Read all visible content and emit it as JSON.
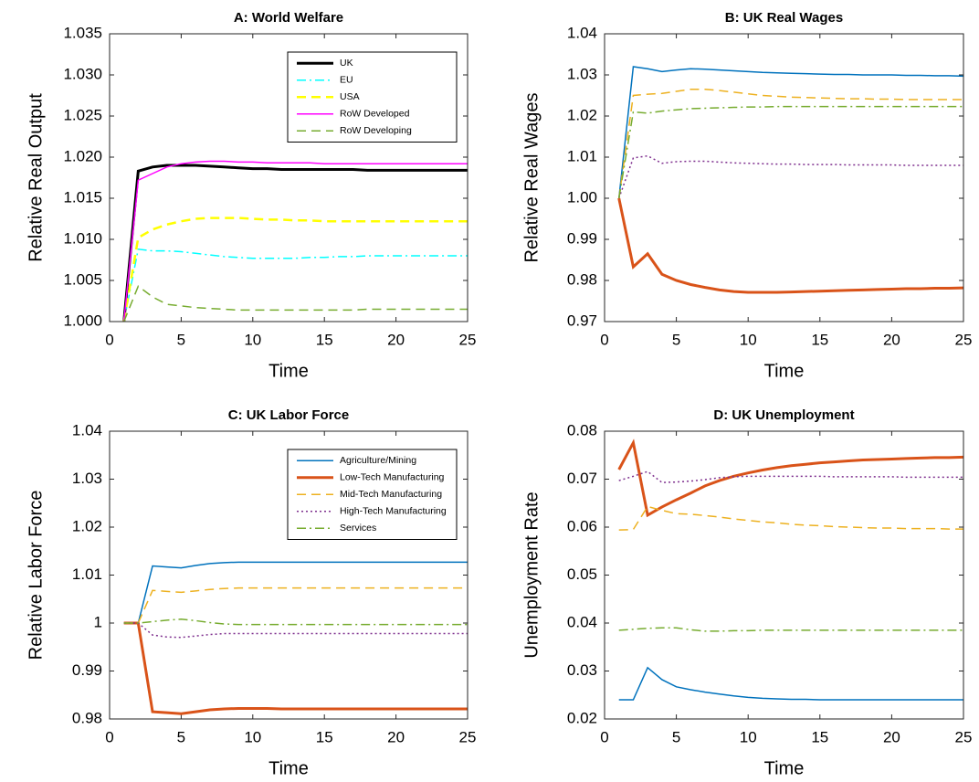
{
  "chart_data": [
    {
      "type": "line",
      "title": "A: World Welfare",
      "xlabel": "Time",
      "ylabel": "Relative Real Output",
      "x": [
        1,
        2,
        3,
        4,
        5,
        6,
        7,
        8,
        9,
        10,
        11,
        12,
        13,
        14,
        15,
        16,
        17,
        18,
        19,
        20,
        21,
        22,
        23,
        24,
        25
      ],
      "xlim": [
        0,
        25
      ],
      "xticks": [
        0,
        5,
        10,
        15,
        20,
        25
      ],
      "ylim": [
        1.0,
        1.035
      ],
      "yticks": [
        {
          "value": 1.0,
          "label": "1.000"
        },
        1.005,
        {
          "value": 1.01,
          "label": "1.010"
        },
        1.015,
        {
          "value": 1.02,
          "label": "1.020"
        },
        1.025,
        {
          "value": 1.03,
          "label": "1.030"
        },
        1.035
      ],
      "legend": "upper right",
      "series": [
        {
          "name": "UK",
          "color": "#000000",
          "dash": "solid",
          "linewidth": 3,
          "values": [
            1.0,
            1.0183,
            1.0188,
            1.019,
            1.019,
            1.019,
            1.0189,
            1.0188,
            1.0187,
            1.0186,
            1.0186,
            1.0185,
            1.0185,
            1.0185,
            1.0185,
            1.0185,
            1.0185,
            1.0184,
            1.0184,
            1.0184,
            1.0184,
            1.0184,
            1.0184,
            1.0184,
            1.0184
          ]
        },
        {
          "name": "EU",
          "color": "#00ffff",
          "dash": "dashdot",
          "linewidth": 1.5,
          "values": [
            1.0,
            1.0088,
            1.0086,
            1.0086,
            1.0085,
            1.0083,
            1.0081,
            1.0079,
            1.0078,
            1.0077,
            1.0077,
            1.0077,
            1.0077,
            1.0078,
            1.0078,
            1.0079,
            1.0079,
            1.008,
            1.008,
            1.008,
            1.008,
            1.008,
            1.008,
            1.008,
            1.008
          ]
        },
        {
          "name": "USA",
          "color": "#ffff00",
          "dash": "dashed",
          "linewidth": 2.5,
          "values": [
            1.0,
            1.0102,
            1.0112,
            1.0118,
            1.0122,
            1.0125,
            1.0126,
            1.0126,
            1.0126,
            1.0125,
            1.0124,
            1.0124,
            1.0123,
            1.0123,
            1.0122,
            1.0122,
            1.0122,
            1.0122,
            1.0122,
            1.0122,
            1.0122,
            1.0122,
            1.0122,
            1.0122,
            1.0122
          ]
        },
        {
          "name": "RoW Developed",
          "color": "#ff00ff",
          "dash": "solid",
          "linewidth": 1.5,
          "values": [
            1.0,
            1.0172,
            1.018,
            1.0188,
            1.0192,
            1.0194,
            1.0195,
            1.0195,
            1.0194,
            1.0194,
            1.0193,
            1.0193,
            1.0193,
            1.0193,
            1.0192,
            1.0192,
            1.0192,
            1.0192,
            1.0192,
            1.0192,
            1.0192,
            1.0192,
            1.0192,
            1.0192,
            1.0192
          ]
        },
        {
          "name": "RoW Developing",
          "color": "#77ac30",
          "dash": "dashed",
          "linewidth": 1.5,
          "values": [
            1.0,
            1.0043,
            1.003,
            1.0021,
            1.0019,
            1.0017,
            1.0016,
            1.0015,
            1.0014,
            1.0014,
            1.0014,
            1.0014,
            1.0014,
            1.0014,
            1.0014,
            1.0014,
            1.0014,
            1.0015,
            1.0015,
            1.0015,
            1.0015,
            1.0015,
            1.0015,
            1.0015,
            1.0015
          ]
        }
      ]
    },
    {
      "type": "line",
      "title": "B: UK Real Wages",
      "xlabel": "Time",
      "ylabel": "Relative Real Wages",
      "x": [
        1,
        2,
        3,
        4,
        5,
        6,
        7,
        8,
        9,
        10,
        11,
        12,
        13,
        14,
        15,
        16,
        17,
        18,
        19,
        20,
        21,
        22,
        23,
        24,
        25
      ],
      "xlim": [
        0,
        25
      ],
      "xticks": [
        0,
        5,
        10,
        15,
        20,
        25
      ],
      "ylim": [
        0.97,
        1.04
      ],
      "yticks": [
        0.97,
        0.98,
        0.99,
        {
          "value": 1.0,
          "label": "1.00"
        },
        1.01,
        1.02,
        1.03,
        1.04
      ],
      "series": [
        {
          "color": "#0072bd",
          "dash": "solid",
          "linewidth": 1.5,
          "values": [
            1.0,
            1.032,
            1.0315,
            1.0308,
            1.0312,
            1.0315,
            1.0314,
            1.0312,
            1.031,
            1.0308,
            1.0306,
            1.0305,
            1.0304,
            1.0303,
            1.0302,
            1.0301,
            1.0301,
            1.03,
            1.03,
            1.03,
            1.0299,
            1.0299,
            1.0298,
            1.0298,
            1.0297
          ]
        },
        {
          "color": "#d95319",
          "dash": "solid",
          "linewidth": 3,
          "values": [
            1.0,
            0.9833,
            0.9865,
            0.9815,
            0.98,
            0.979,
            0.9783,
            0.9777,
            0.9773,
            0.9771,
            0.9771,
            0.9771,
            0.9772,
            0.9773,
            0.9774,
            0.9775,
            0.9776,
            0.9777,
            0.9778,
            0.9779,
            0.978,
            0.978,
            0.9781,
            0.9781,
            0.9782
          ]
        },
        {
          "color": "#edb120",
          "dash": "dashed",
          "linewidth": 1.5,
          "values": [
            1.0,
            1.025,
            1.0253,
            1.0255,
            1.026,
            1.0265,
            1.0265,
            1.0262,
            1.0258,
            1.0254,
            1.025,
            1.0248,
            1.0246,
            1.0245,
            1.0244,
            1.0243,
            1.0242,
            1.0242,
            1.0241,
            1.0241,
            1.024,
            1.024,
            1.024,
            1.024,
            1.024
          ]
        },
        {
          "color": "#7e2f8e",
          "dash": "dotted",
          "linewidth": 1.5,
          "values": [
            1.0,
            1.0098,
            1.0103,
            1.0085,
            1.0089,
            1.009,
            1.009,
            1.0088,
            1.0086,
            1.0085,
            1.0084,
            1.0083,
            1.0083,
            1.0082,
            1.0082,
            1.0082,
            1.0081,
            1.0081,
            1.0081,
            1.0081,
            1.008,
            1.008,
            1.008,
            1.008,
            1.008
          ]
        },
        {
          "color": "#77ac30",
          "dash": "dashdot",
          "linewidth": 1.5,
          "values": [
            1.0,
            1.021,
            1.0207,
            1.0212,
            1.0215,
            1.0218,
            1.0219,
            1.022,
            1.0221,
            1.0222,
            1.0222,
            1.0223,
            1.0223,
            1.0223,
            1.0223,
            1.0223,
            1.0223,
            1.0223,
            1.0223,
            1.0223,
            1.0223,
            1.0223,
            1.0223,
            1.0223,
            1.0223
          ]
        }
      ]
    },
    {
      "type": "line",
      "title": "C: UK Labor Force",
      "xlabel": "Time",
      "ylabel": "Relative Labor Force",
      "x": [
        1,
        2,
        3,
        4,
        5,
        6,
        7,
        8,
        9,
        10,
        11,
        12,
        13,
        14,
        15,
        16,
        17,
        18,
        19,
        20,
        21,
        22,
        23,
        24,
        25
      ],
      "xlim": [
        0,
        25
      ],
      "xticks": [
        0,
        5,
        10,
        15,
        20,
        25
      ],
      "ylim": [
        0.98,
        1.04
      ],
      "yticks": [
        0.98,
        0.99,
        1,
        1.01,
        1.02,
        1.03,
        1.04
      ],
      "legend": "upper right",
      "series": [
        {
          "name": "Agriculture/Mining",
          "color": "#0072bd",
          "dash": "solid",
          "linewidth": 1.5,
          "values": [
            1,
            1,
            1.0119,
            1.0117,
            1.0115,
            1.012,
            1.0124,
            1.0126,
            1.0127,
            1.0127,
            1.0127,
            1.0127,
            1.0127,
            1.0127,
            1.0127,
            1.0127,
            1.0127,
            1.0127,
            1.0127,
            1.0127,
            1.0127,
            1.0127,
            1.0127,
            1.0127,
            1.0127
          ]
        },
        {
          "name": "Low-Tech Manufacturing",
          "color": "#d95319",
          "dash": "solid",
          "linewidth": 3,
          "values": [
            1,
            1,
            0.9815,
            0.9813,
            0.9811,
            0.9815,
            0.9819,
            0.9821,
            0.9822,
            0.9822,
            0.9822,
            0.9821,
            0.9821,
            0.9821,
            0.9821,
            0.9821,
            0.9821,
            0.9821,
            0.9821,
            0.9821,
            0.9821,
            0.9821,
            0.9821,
            0.9821,
            0.9821
          ]
        },
        {
          "name": "Mid-Tech Manufacturing",
          "color": "#edb120",
          "dash": "dashed",
          "linewidth": 1.5,
          "values": [
            1,
            1,
            1.0068,
            1.0066,
            1.0064,
            1.0067,
            1.007,
            1.0072,
            1.0073,
            1.0073,
            1.0073,
            1.0073,
            1.0073,
            1.0073,
            1.0073,
            1.0073,
            1.0073,
            1.0073,
            1.0073,
            1.0073,
            1.0073,
            1.0073,
            1.0073,
            1.0073,
            1.0073
          ]
        },
        {
          "name": "High-Tech Manufacturing",
          "color": "#7e2f8e",
          "dash": "dotted",
          "linewidth": 1.5,
          "values": [
            1,
            1,
            0.9975,
            0.9971,
            0.997,
            0.9973,
            0.9976,
            0.9978,
            0.9978,
            0.9978,
            0.9978,
            0.9978,
            0.9978,
            0.9978,
            0.9978,
            0.9978,
            0.9978,
            0.9978,
            0.9978,
            0.9978,
            0.9978,
            0.9978,
            0.9978,
            0.9978,
            0.9978
          ]
        },
        {
          "name": "Services",
          "color": "#77ac30",
          "dash": "dashdot",
          "linewidth": 1.5,
          "values": [
            1,
            1,
            1.0003,
            1.0006,
            1.0008,
            1.0005,
            1.0001,
            0.9998,
            0.9997,
            0.9997,
            0.9997,
            0.9997,
            0.9997,
            0.9997,
            0.9997,
            0.9997,
            0.9997,
            0.9997,
            0.9997,
            0.9997,
            0.9997,
            0.9997,
            0.9997,
            0.9997,
            0.9997
          ]
        }
      ]
    },
    {
      "type": "line",
      "title": "D: UK Unemployment",
      "xlabel": "Time",
      "ylabel": "Unemployment Rate",
      "x": [
        1,
        2,
        3,
        4,
        5,
        6,
        7,
        8,
        9,
        10,
        11,
        12,
        13,
        14,
        15,
        16,
        17,
        18,
        19,
        20,
        21,
        22,
        23,
        24,
        25
      ],
      "xlim": [
        0,
        25
      ],
      "xticks": [
        0,
        5,
        10,
        15,
        20,
        25
      ],
      "ylim": [
        0.02,
        0.08
      ],
      "yticks": [
        0.02,
        0.03,
        0.04,
        0.05,
        0.06,
        0.07,
        0.08
      ],
      "series": [
        {
          "color": "#0072bd",
          "dash": "solid",
          "linewidth": 1.5,
          "values": [
            0.024,
            0.024,
            0.0307,
            0.0282,
            0.0267,
            0.0261,
            0.0256,
            0.0252,
            0.0248,
            0.0245,
            0.0243,
            0.0242,
            0.0241,
            0.0241,
            0.024,
            0.024,
            0.024,
            0.024,
            0.024,
            0.024,
            0.024,
            0.024,
            0.024,
            0.024,
            0.024
          ]
        },
        {
          "color": "#d95319",
          "dash": "solid",
          "linewidth": 3,
          "values": [
            0.072,
            0.0776,
            0.0625,
            0.0642,
            0.0657,
            0.0671,
            0.0686,
            0.0697,
            0.0706,
            0.0713,
            0.0719,
            0.0724,
            0.0728,
            0.0731,
            0.0734,
            0.0736,
            0.0738,
            0.074,
            0.0741,
            0.0742,
            0.0743,
            0.0744,
            0.0745,
            0.0745,
            0.0746
          ]
        },
        {
          "color": "#edb120",
          "dash": "dashed",
          "linewidth": 1.5,
          "values": [
            0.0594,
            0.0595,
            0.0643,
            0.0635,
            0.0628,
            0.0627,
            0.0624,
            0.0621,
            0.0617,
            0.0614,
            0.0611,
            0.0609,
            0.0606,
            0.0604,
            0.0603,
            0.0601,
            0.06,
            0.0599,
            0.0598,
            0.0598,
            0.0597,
            0.0597,
            0.0597,
            0.0596,
            0.0596
          ]
        },
        {
          "color": "#7e2f8e",
          "dash": "dotted",
          "linewidth": 1.5,
          "values": [
            0.0697,
            0.0706,
            0.0716,
            0.0693,
            0.0694,
            0.0696,
            0.0699,
            0.0703,
            0.0705,
            0.0706,
            0.0706,
            0.0706,
            0.0706,
            0.0706,
            0.0706,
            0.0705,
            0.0705,
            0.0705,
            0.0705,
            0.0705,
            0.0704,
            0.0704,
            0.0704,
            0.0704,
            0.0704
          ]
        },
        {
          "color": "#77ac30",
          "dash": "dashdot",
          "linewidth": 1.5,
          "values": [
            0.0385,
            0.0387,
            0.0389,
            0.039,
            0.039,
            0.0386,
            0.0383,
            0.0383,
            0.0384,
            0.0384,
            0.0385,
            0.0385,
            0.0385,
            0.0385,
            0.0385,
            0.0385,
            0.0385,
            0.0385,
            0.0385,
            0.0385,
            0.0385,
            0.0385,
            0.0385,
            0.0385,
            0.0385
          ]
        }
      ]
    }
  ]
}
